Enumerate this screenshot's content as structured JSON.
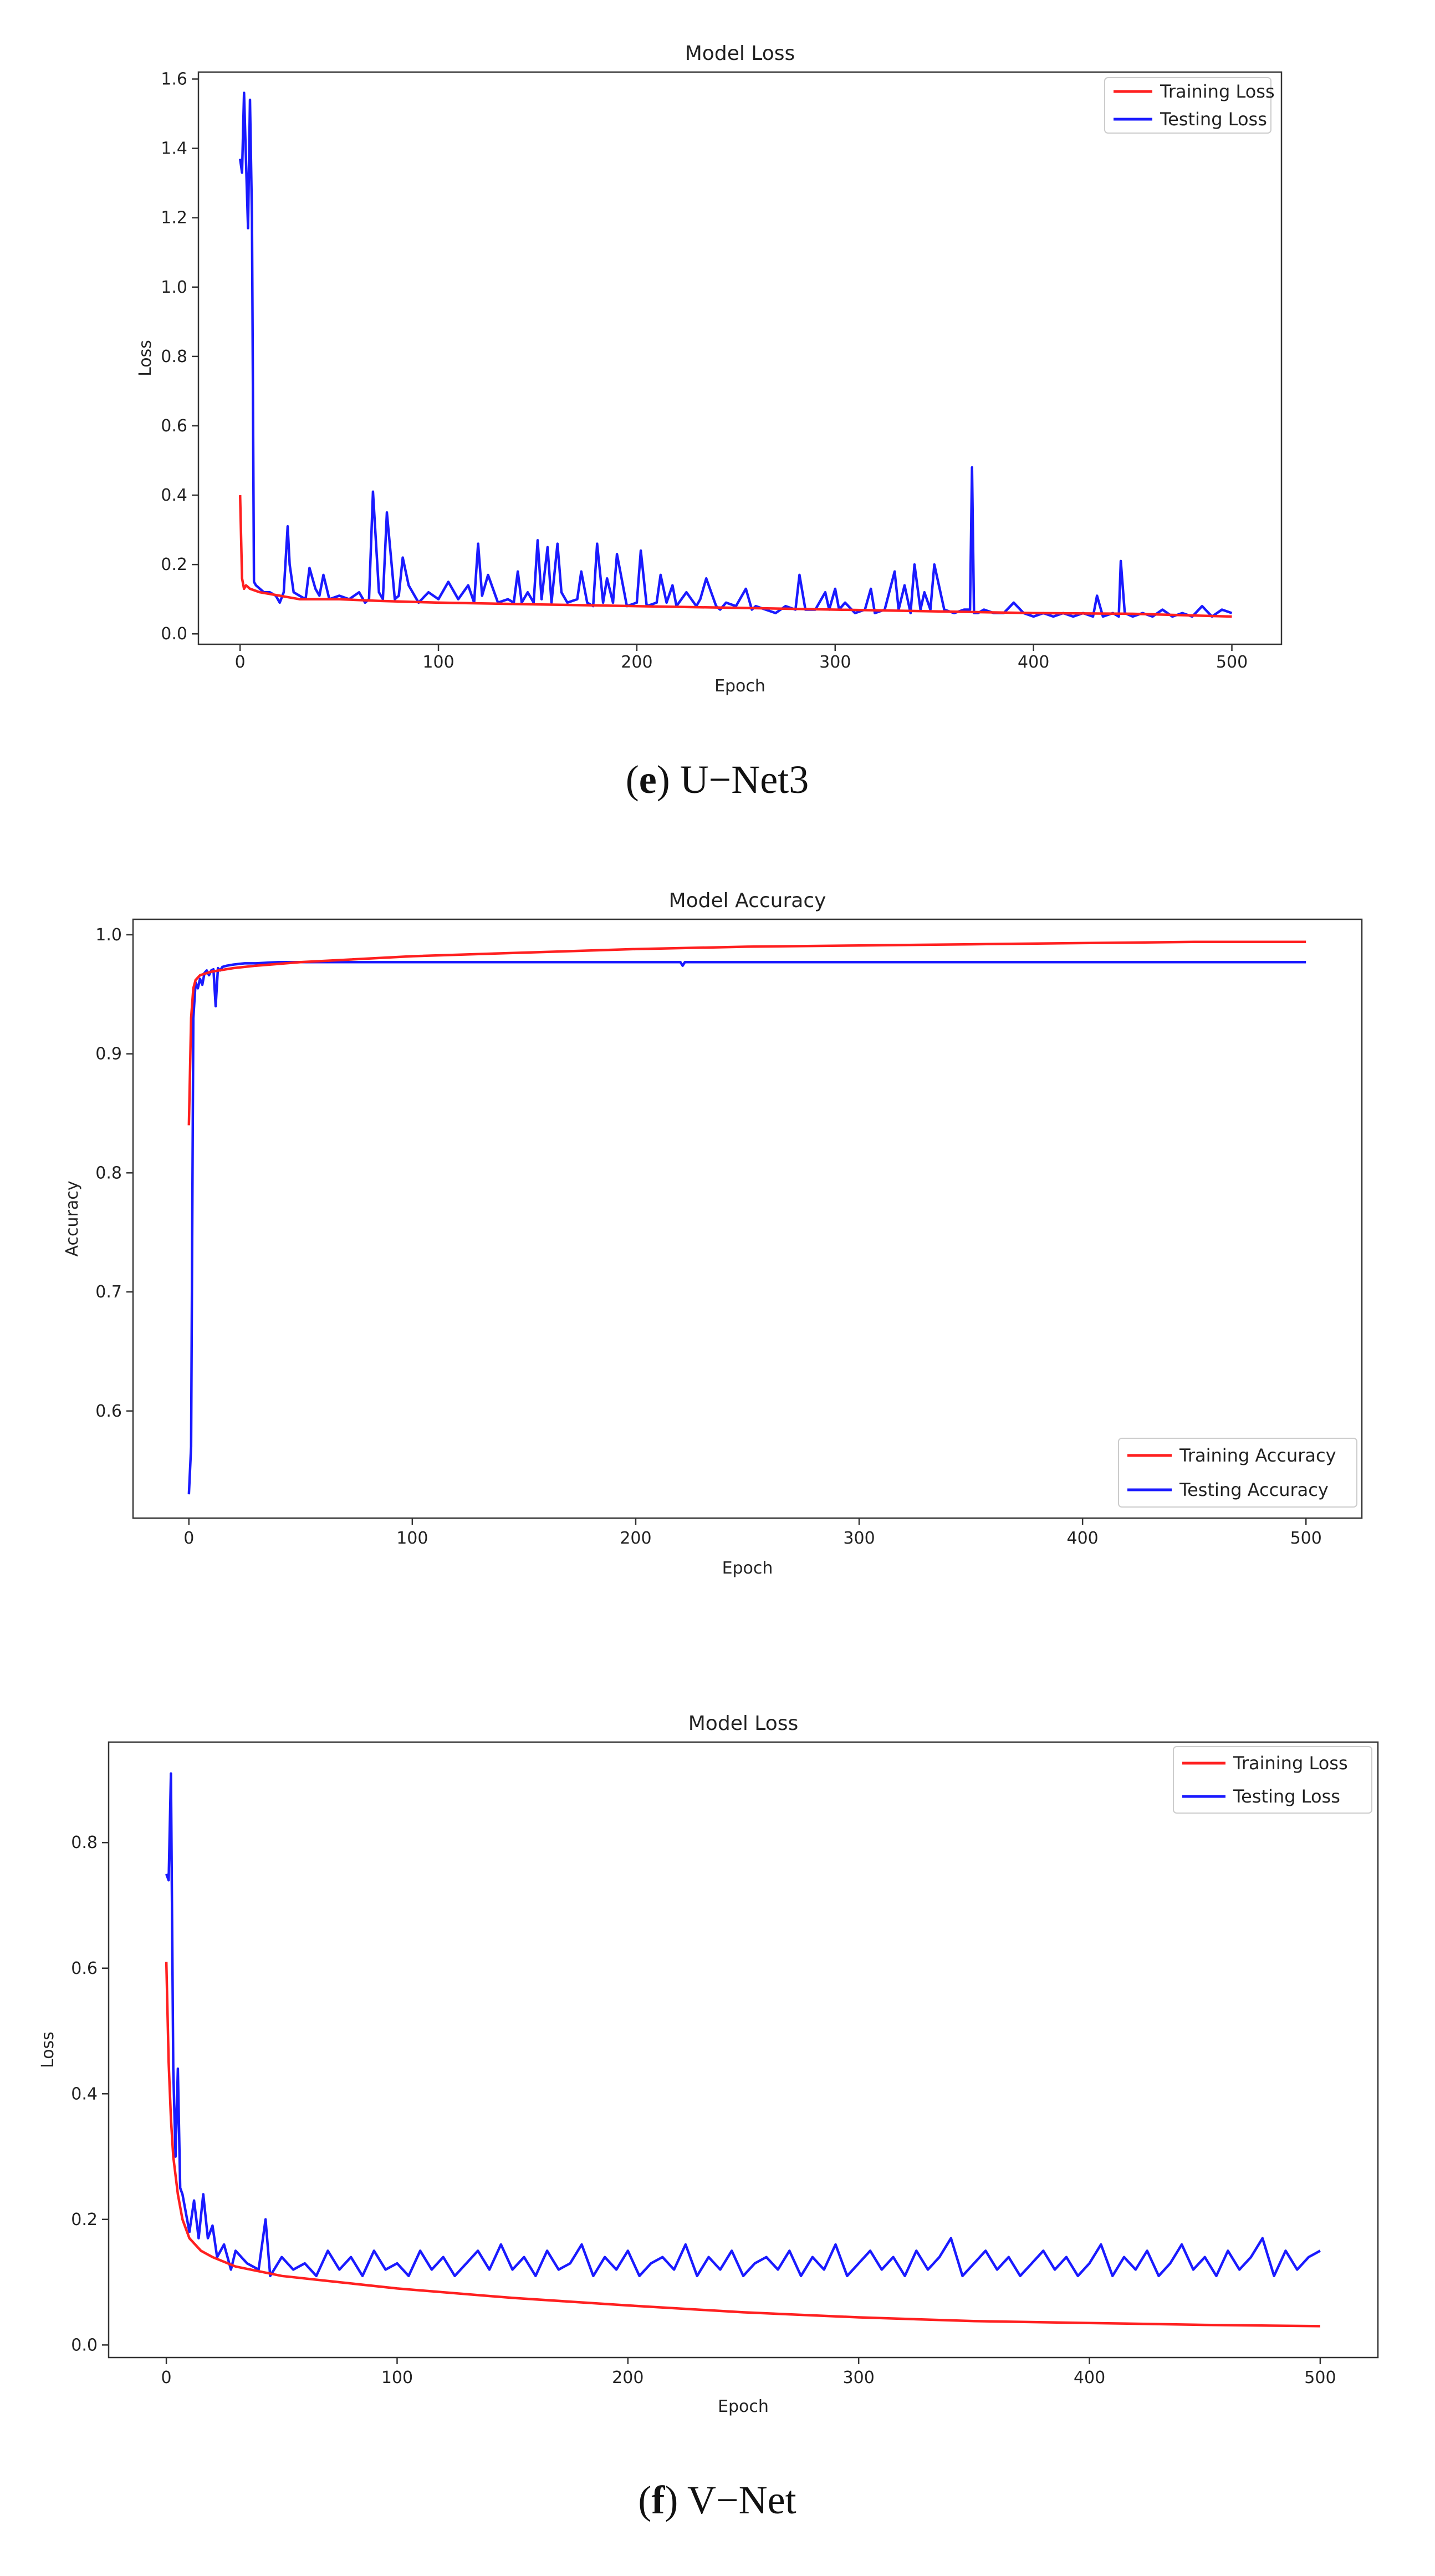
{
  "captions": [
    {
      "letter": "e",
      "text": "U−Net3"
    },
    {
      "letter": "f",
      "text": "V−Net"
    }
  ],
  "chart_data": [
    {
      "type": "line",
      "title": "Model Loss",
      "xlabel": "Epoch",
      "ylabel": "Loss",
      "xlim": [
        -21,
        525
      ],
      "ylim": [
        -0.03,
        1.62
      ],
      "xticks": [
        0,
        100,
        200,
        300,
        400,
        500
      ],
      "yticks": [
        0.0,
        0.2,
        0.4,
        0.6,
        0.8,
        1.0,
        1.2,
        1.4,
        1.6
      ],
      "ytick_format": 1,
      "grid": false,
      "legend": "top-right",
      "series": [
        {
          "name": "Training Loss",
          "color": "#ff2020",
          "x": [
            0,
            1,
            2,
            3,
            5,
            10,
            20,
            30,
            50,
            70,
            100,
            150,
            200,
            250,
            300,
            350,
            400,
            450,
            500
          ],
          "y": [
            0.4,
            0.16,
            0.13,
            0.14,
            0.13,
            0.12,
            0.11,
            0.1,
            0.1,
            0.095,
            0.09,
            0.085,
            0.08,
            0.075,
            0.07,
            0.065,
            0.06,
            0.058,
            0.05
          ]
        },
        {
          "name": "Testing Loss",
          "color": "#1a1aff",
          "x": [
            0,
            1,
            2,
            3,
            4,
            5,
            6,
            7,
            8,
            10,
            12,
            15,
            18,
            20,
            22,
            24,
            25,
            27,
            30,
            33,
            35,
            38,
            40,
            42,
            45,
            50,
            55,
            60,
            63,
            65,
            67,
            70,
            72,
            74,
            78,
            80,
            82,
            85,
            90,
            95,
            100,
            105,
            110,
            115,
            118,
            120,
            122,
            125,
            130,
            135,
            138,
            140,
            142,
            145,
            148,
            150,
            152,
            155,
            157,
            160,
            162,
            165,
            170,
            172,
            175,
            178,
            180,
            183,
            185,
            188,
            190,
            195,
            200,
            202,
            205,
            210,
            212,
            215,
            218,
            220,
            225,
            230,
            232,
            235,
            240,
            242,
            245,
            250,
            255,
            258,
            260,
            265,
            270,
            275,
            280,
            282,
            285,
            290,
            295,
            297,
            300,
            302,
            305,
            310,
            315,
            318,
            320,
            325,
            330,
            332,
            335,
            338,
            340,
            343,
            345,
            348,
            350,
            355,
            360,
            365,
            368,
            369,
            370,
            372,
            375,
            380,
            385,
            390,
            395,
            400,
            405,
            410,
            415,
            420,
            425,
            430,
            432,
            435,
            440,
            443,
            444,
            446,
            450,
            455,
            460,
            465,
            470,
            475,
            480,
            485,
            490,
            495,
            500
          ],
          "y": [
            1.37,
            1.33,
            1.56,
            1.36,
            1.17,
            1.54,
            1.2,
            0.15,
            0.14,
            0.13,
            0.12,
            0.12,
            0.11,
            0.09,
            0.12,
            0.31,
            0.2,
            0.12,
            0.11,
            0.1,
            0.19,
            0.13,
            0.11,
            0.17,
            0.1,
            0.11,
            0.1,
            0.12,
            0.09,
            0.1,
            0.41,
            0.12,
            0.1,
            0.35,
            0.1,
            0.11,
            0.22,
            0.14,
            0.09,
            0.12,
            0.1,
            0.15,
            0.1,
            0.14,
            0.09,
            0.26,
            0.11,
            0.17,
            0.09,
            0.1,
            0.09,
            0.18,
            0.09,
            0.12,
            0.09,
            0.27,
            0.1,
            0.25,
            0.09,
            0.26,
            0.12,
            0.09,
            0.1,
            0.18,
            0.09,
            0.08,
            0.26,
            0.09,
            0.16,
            0.09,
            0.23,
            0.08,
            0.09,
            0.24,
            0.08,
            0.09,
            0.17,
            0.09,
            0.14,
            0.08,
            0.12,
            0.08,
            0.1,
            0.16,
            0.08,
            0.07,
            0.09,
            0.08,
            0.13,
            0.07,
            0.08,
            0.07,
            0.06,
            0.08,
            0.07,
            0.17,
            0.07,
            0.07,
            0.12,
            0.07,
            0.13,
            0.07,
            0.09,
            0.06,
            0.07,
            0.13,
            0.06,
            0.07,
            0.18,
            0.07,
            0.14,
            0.06,
            0.2,
            0.07,
            0.12,
            0.07,
            0.2,
            0.07,
            0.06,
            0.07,
            0.07,
            0.48,
            0.06,
            0.06,
            0.07,
            0.06,
            0.06,
            0.09,
            0.06,
            0.05,
            0.06,
            0.05,
            0.06,
            0.05,
            0.06,
            0.05,
            0.11,
            0.05,
            0.06,
            0.05,
            0.21,
            0.06,
            0.05,
            0.06,
            0.05,
            0.07,
            0.05,
            0.06,
            0.05,
            0.08,
            0.05,
            0.07,
            0.06
          ]
        }
      ]
    },
    {
      "type": "line",
      "title": "Model Accuracy",
      "xlabel": "Epoch",
      "ylabel": "Accuracy",
      "xlim": [
        -25,
        525
      ],
      "ylim": [
        0.51,
        1.013
      ],
      "xticks": [
        0,
        100,
        200,
        300,
        400,
        500
      ],
      "yticks": [
        0.6,
        0.7,
        0.8,
        0.9,
        1.0
      ],
      "ytick_format": 1,
      "grid": false,
      "legend": "bottom-right",
      "series": [
        {
          "name": "Training Accuracy",
          "color": "#ff2020",
          "x": [
            0,
            1,
            2,
            3,
            5,
            10,
            20,
            30,
            50,
            100,
            150,
            200,
            250,
            300,
            350,
            400,
            450,
            500
          ],
          "y": [
            0.84,
            0.93,
            0.955,
            0.962,
            0.966,
            0.969,
            0.972,
            0.974,
            0.977,
            0.982,
            0.985,
            0.988,
            0.99,
            0.991,
            0.992,
            0.993,
            0.994,
            0.994
          ]
        },
        {
          "name": "Testing Accuracy",
          "color": "#1a1aff",
          "x": [
            0,
            1,
            2,
            3,
            4,
            5,
            6,
            7,
            8,
            9,
            10,
            11,
            12,
            13,
            14,
            15,
            17,
            20,
            25,
            30,
            40,
            50,
            70,
            100,
            150,
            200,
            220,
            221,
            222,
            250,
            300,
            350,
            400,
            450,
            500
          ],
          "y": [
            0.53,
            0.57,
            0.93,
            0.96,
            0.955,
            0.963,
            0.958,
            0.968,
            0.97,
            0.966,
            0.97,
            0.971,
            0.94,
            0.972,
            0.97,
            0.973,
            0.974,
            0.975,
            0.976,
            0.976,
            0.977,
            0.977,
            0.977,
            0.977,
            0.977,
            0.977,
            0.977,
            0.974,
            0.977,
            0.977,
            0.977,
            0.977,
            0.977,
            0.977,
            0.977
          ]
        }
      ]
    },
    {
      "type": "line",
      "title": "Model Loss",
      "xlabel": "Epoch",
      "ylabel": "Loss",
      "xlim": [
        -25,
        525
      ],
      "ylim": [
        -0.02,
        0.96
      ],
      "xticks": [
        0,
        100,
        200,
        300,
        400,
        500
      ],
      "yticks": [
        0.0,
        0.2,
        0.4,
        0.6,
        0.8
      ],
      "ytick_format": 1,
      "grid": false,
      "legend": "top-right",
      "series": [
        {
          "name": "Training Loss",
          "color": "#ff2020",
          "x": [
            0,
            1,
            2,
            3,
            5,
            7,
            10,
            15,
            20,
            30,
            50,
            75,
            100,
            150,
            200,
            250,
            300,
            350,
            400,
            450,
            500
          ],
          "y": [
            0.61,
            0.45,
            0.36,
            0.3,
            0.24,
            0.2,
            0.17,
            0.15,
            0.14,
            0.125,
            0.11,
            0.1,
            0.09,
            0.075,
            0.063,
            0.052,
            0.044,
            0.038,
            0.035,
            0.032,
            0.03
          ]
        },
        {
          "name": "Testing Loss",
          "color": "#1a1aff",
          "x": [
            0,
            1,
            2,
            3,
            4,
            5,
            6,
            7,
            8,
            10,
            12,
            14,
            16,
            18,
            20,
            22,
            25,
            28,
            30,
            35,
            40,
            43,
            45,
            50,
            55,
            60,
            65,
            70,
            75,
            80,
            85,
            90,
            95,
            100,
            105,
            110,
            115,
            120,
            125,
            130,
            135,
            140,
            145,
            150,
            155,
            160,
            165,
            170,
            175,
            180,
            185,
            190,
            195,
            200,
            205,
            210,
            215,
            220,
            225,
            230,
            235,
            240,
            245,
            250,
            255,
            260,
            265,
            270,
            275,
            280,
            285,
            290,
            295,
            300,
            305,
            310,
            315,
            320,
            325,
            330,
            335,
            340,
            345,
            350,
            355,
            360,
            365,
            370,
            375,
            380,
            385,
            390,
            395,
            400,
            405,
            410,
            415,
            420,
            425,
            430,
            435,
            440,
            445,
            450,
            455,
            460,
            465,
            470,
            475,
            480,
            485,
            490,
            495,
            500
          ],
          "y": [
            0.75,
            0.74,
            0.91,
            0.44,
            0.3,
            0.44,
            0.25,
            0.24,
            0.22,
            0.18,
            0.23,
            0.17,
            0.24,
            0.17,
            0.19,
            0.14,
            0.16,
            0.12,
            0.15,
            0.13,
            0.12,
            0.2,
            0.11,
            0.14,
            0.12,
            0.13,
            0.11,
            0.15,
            0.12,
            0.14,
            0.11,
            0.15,
            0.12,
            0.13,
            0.11,
            0.15,
            0.12,
            0.14,
            0.11,
            0.13,
            0.15,
            0.12,
            0.16,
            0.12,
            0.14,
            0.11,
            0.15,
            0.12,
            0.13,
            0.16,
            0.11,
            0.14,
            0.12,
            0.15,
            0.11,
            0.13,
            0.14,
            0.12,
            0.16,
            0.11,
            0.14,
            0.12,
            0.15,
            0.11,
            0.13,
            0.14,
            0.12,
            0.15,
            0.11,
            0.14,
            0.12,
            0.16,
            0.11,
            0.13,
            0.15,
            0.12,
            0.14,
            0.11,
            0.15,
            0.12,
            0.14,
            0.17,
            0.11,
            0.13,
            0.15,
            0.12,
            0.14,
            0.11,
            0.13,
            0.15,
            0.12,
            0.14,
            0.11,
            0.13,
            0.16,
            0.11,
            0.14,
            0.12,
            0.15,
            0.11,
            0.13,
            0.16,
            0.12,
            0.14,
            0.11,
            0.15,
            0.12,
            0.14,
            0.17,
            0.11,
            0.15,
            0.12,
            0.14,
            0.15
          ]
        }
      ]
    }
  ]
}
